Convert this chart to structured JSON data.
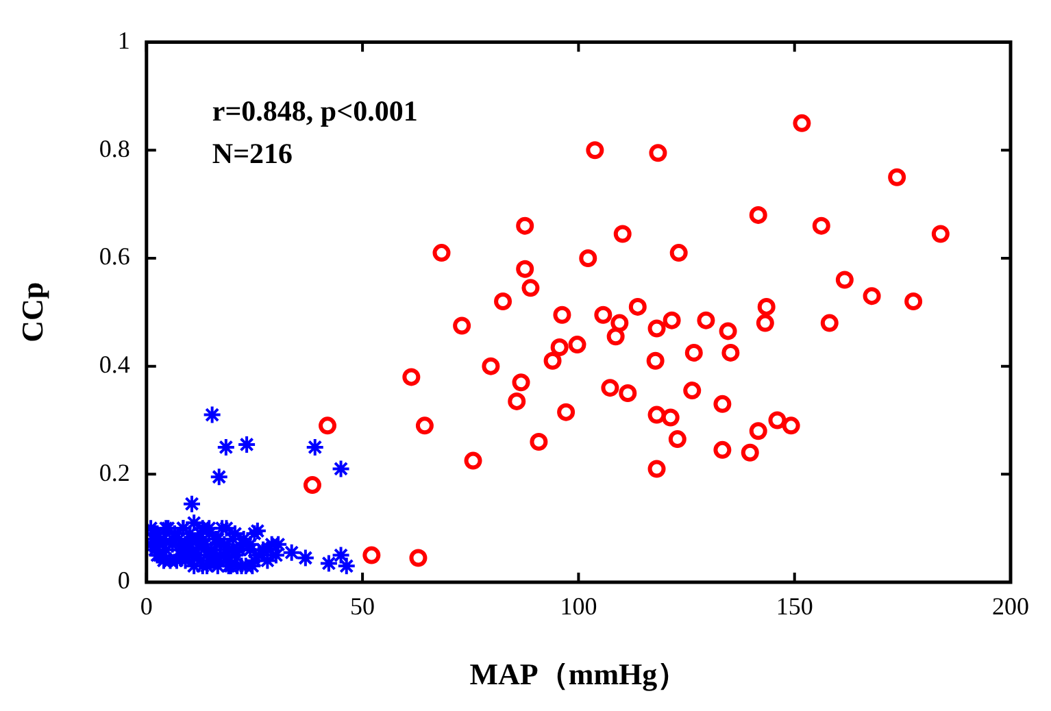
{
  "chart_data": {
    "type": "scatter",
    "xlabel": "MAP（mmHg）",
    "ylabel": "CCp",
    "xlim": [
      0,
      200
    ],
    "xticks": [
      0,
      50,
      100,
      150,
      200
    ],
    "ylim": [
      0,
      1
    ],
    "yticks": [
      0,
      0.2,
      0.4,
      0.6,
      0.8,
      1
    ],
    "grid": false,
    "legend": false,
    "annotations": [
      "r=0.848, p<0.001",
      "N=216"
    ],
    "series": [
      {
        "color": "#0000ff",
        "marker": "cross",
        "x": [
          15.2,
          18.4,
          23.2,
          16.8,
          10.5,
          39,
          45,
          33.6,
          36.8,
          42.2,
          45,
          46.3,
          25.7,
          30.5,
          1,
          1.5,
          2,
          2.5,
          3,
          4,
          4.5,
          5,
          5.5,
          6,
          6.5,
          7.5,
          8,
          8.5,
          9,
          9.5,
          10,
          10.5,
          11,
          11.5,
          12,
          12.5,
          13,
          13.5,
          14,
          14.5,
          15,
          15.5,
          16,
          16.5,
          17,
          17.5,
          18,
          18.5,
          19,
          19.5,
          20,
          20.5,
          21.5,
          22,
          22.5,
          24,
          24.5,
          25,
          26,
          27,
          28,
          29,
          1,
          2,
          3,
          4,
          6,
          7,
          8,
          9,
          11,
          12,
          13,
          14,
          15,
          17,
          18,
          20,
          21,
          24,
          25,
          27,
          2.5,
          4.5,
          6.5,
          8.5,
          10.5,
          12.5,
          14.5,
          16.5,
          18.5,
          20.5,
          22.5,
          28,
          30,
          9,
          13,
          15,
          19,
          23
        ],
        "values": [
          0.31,
          0.25,
          0.255,
          0.195,
          0.145,
          0.25,
          0.21,
          0.055,
          0.045,
          0.035,
          0.05,
          0.03,
          0.095,
          0.07,
          0.1,
          0.08,
          0.06,
          0.09,
          0.07,
          0.08,
          0.06,
          0.1,
          0.04,
          0.07,
          0.09,
          0.08,
          0.06,
          0.1,
          0.04,
          0.07,
          0.09,
          0.05,
          0.11,
          0.06,
          0.08,
          0.04,
          0.1,
          0.07,
          0.05,
          0.09,
          0.06,
          0.04,
          0.08,
          0.03,
          0.07,
          0.1,
          0.05,
          0.04,
          0.06,
          0.03,
          0.08,
          0.05,
          0.06,
          0.03,
          0.07,
          0.06,
          0.03,
          0.09,
          0.05,
          0.06,
          0.04,
          0.07,
          0.07,
          0.09,
          0.05,
          0.04,
          0.08,
          0.04,
          0.05,
          0.07,
          0.03,
          0.05,
          0.07,
          0.03,
          0.06,
          0.05,
          0.07,
          0.06,
          0.03,
          0.07,
          0.04,
          0.06,
          0.05,
          0.1,
          0.09,
          0.1,
          0.08,
          0.09,
          0.1,
          0.08,
          0.1,
          0.09,
          0.08,
          0.06,
          0.05,
          0.05,
          0.03,
          0.04,
          0.03,
          0.03
        ]
      },
      {
        "color": "#ff0000",
        "marker": "circle",
        "x": [
          38.4,
          41.9,
          52.1,
          62.9,
          61.3,
          64.4,
          68.3,
          73,
          75.6,
          79.7,
          82.5,
          85.7,
          86.7,
          87.6,
          87.6,
          88.9,
          90.8,
          94,
          95.6,
          96.2,
          97.1,
          99.7,
          102.2,
          103.8,
          105.7,
          107.3,
          108.6,
          109.5,
          110.2,
          111.4,
          113.7,
          117.8,
          118.1,
          118.1,
          118.1,
          118.4,
          121.3,
          121.6,
          122.9,
          123.2,
          126.3,
          126.7,
          129.5,
          133.3,
          133.3,
          134.6,
          135.2,
          139.7,
          141.6,
          141.6,
          143.2,
          143.5,
          146,
          149.2,
          151.7,
          156.2,
          158.1,
          161.6,
          167.9,
          173.7,
          177.5,
          183.8
        ],
        "values": [
          0.18,
          0.29,
          0.05,
          0.045,
          0.38,
          0.29,
          0.61,
          0.475,
          0.225,
          0.4,
          0.52,
          0.335,
          0.37,
          0.58,
          0.66,
          0.545,
          0.26,
          0.41,
          0.435,
          0.495,
          0.315,
          0.44,
          0.6,
          0.8,
          0.495,
          0.36,
          0.455,
          0.48,
          0.645,
          0.35,
          0.51,
          0.41,
          0.47,
          0.21,
          0.31,
          0.795,
          0.305,
          0.485,
          0.265,
          0.61,
          0.355,
          0.425,
          0.485,
          0.33,
          0.245,
          0.465,
          0.425,
          0.24,
          0.28,
          0.68,
          0.48,
          0.51,
          0.3,
          0.29,
          0.85,
          0.66,
          0.48,
          0.56,
          0.53,
          0.75,
          0.52,
          0.645
        ]
      }
    ]
  }
}
